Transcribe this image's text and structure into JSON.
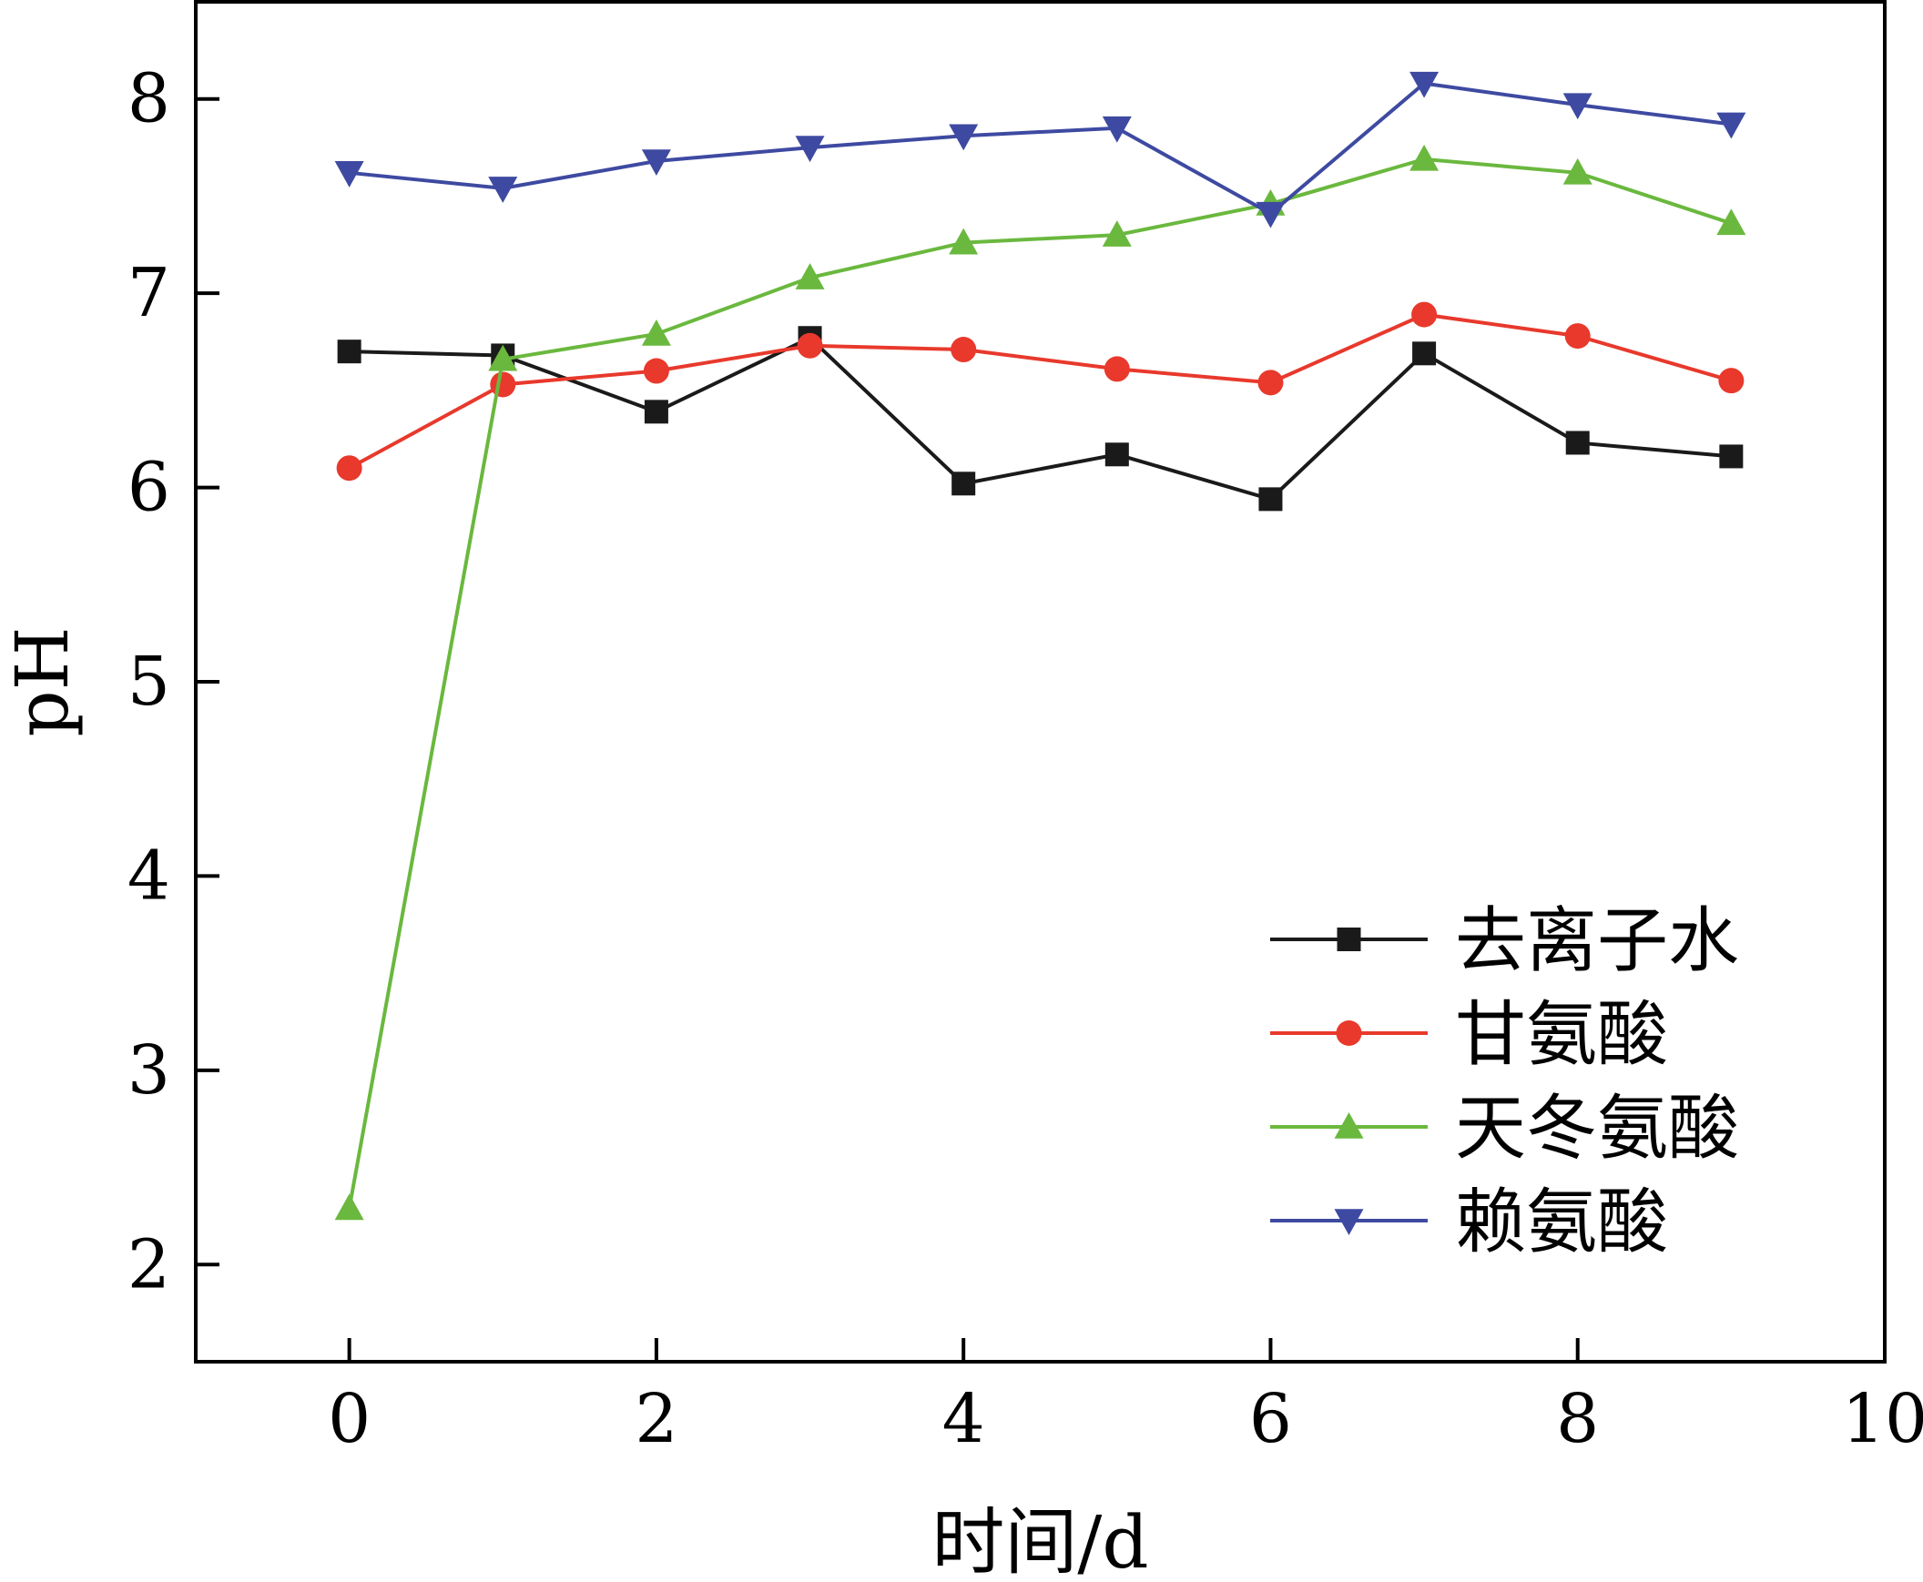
{
  "chart_data": {
    "type": "line",
    "title": "",
    "xlabel": "时间/d",
    "ylabel": "pH",
    "xlim": [
      -1,
      10
    ],
    "ylim": [
      1.5,
      8.5
    ],
    "xticks": [
      0,
      2,
      4,
      6,
      8,
      10
    ],
    "yticks": [
      2,
      3,
      4,
      5,
      6,
      7,
      8
    ],
    "grid": false,
    "legend_position": "bottom-right",
    "x": [
      0,
      1,
      2,
      3,
      4,
      5,
      6,
      7,
      8,
      9
    ],
    "series": [
      {
        "name": "去离子水",
        "color": "#1a1a1a",
        "marker": "square",
        "values": [
          6.7,
          6.68,
          6.39,
          6.77,
          6.02,
          6.17,
          5.94,
          6.69,
          6.23,
          6.16
        ]
      },
      {
        "name": "甘氨酸",
        "color": "#e8392c",
        "marker": "circle",
        "values": [
          6.1,
          6.53,
          6.6,
          6.73,
          6.71,
          6.61,
          6.54,
          6.89,
          6.78,
          6.55
        ]
      },
      {
        "name": "天冬氨酸",
        "color": "#6ab83e",
        "marker": "triangle-up",
        "values": [
          2.29,
          6.66,
          6.79,
          7.08,
          7.26,
          7.3,
          7.46,
          7.69,
          7.62,
          7.36
        ]
      },
      {
        "name": "赖氨酸",
        "color": "#3e4aa1",
        "marker": "triangle-down",
        "values": [
          7.62,
          7.54,
          7.68,
          7.75,
          7.81,
          7.85,
          7.41,
          8.08,
          7.97,
          7.87
        ]
      }
    ]
  }
}
